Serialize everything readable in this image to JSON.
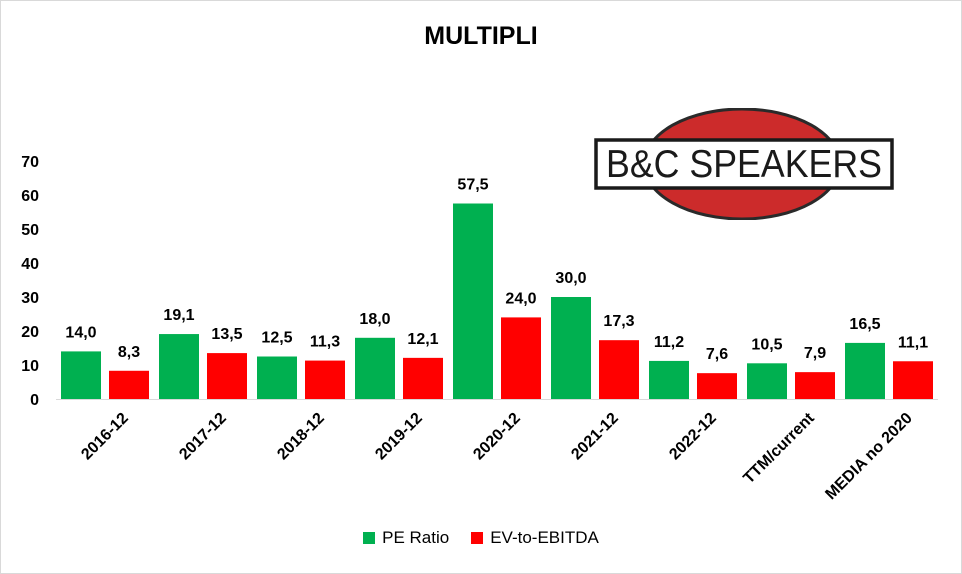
{
  "title": "MULTIPLI",
  "logo_text": "B&C SPEAKERS",
  "colors": {
    "pe": "#00b050",
    "ev": "#ff0000",
    "logo_circle": "#cc2b2b"
  },
  "chart_data": {
    "type": "bar",
    "title": "MULTIPLI",
    "categories": [
      "2016-12",
      "2017-12",
      "2018-12",
      "2019-12",
      "2020-12",
      "2021-12",
      "2022-12",
      "TTM/current",
      "MEDIA no 2020"
    ],
    "series": [
      {
        "name": "PE Ratio",
        "values": [
          14.0,
          19.1,
          12.5,
          18.0,
          57.5,
          30.0,
          11.2,
          10.5,
          16.5
        ],
        "labels": [
          "14,0",
          "19,1",
          "12,5",
          "18,0",
          "57,5",
          "30,0",
          "11,2",
          "10,5",
          "16,5"
        ]
      },
      {
        "name": "EV-to-EBITDA",
        "values": [
          8.3,
          13.5,
          11.3,
          12.1,
          24.0,
          17.3,
          7.6,
          7.9,
          11.1
        ],
        "labels": [
          "8,3",
          "13,5",
          "11,3",
          "12,1",
          "24,0",
          "17,3",
          "7,6",
          "7,9",
          "11,1"
        ]
      }
    ],
    "yticks": [
      "0",
      "10",
      "20",
      "30",
      "40",
      "50",
      "60",
      "70"
    ],
    "ylim": [
      0,
      70
    ],
    "grid": false,
    "legend_position": "bottom"
  }
}
